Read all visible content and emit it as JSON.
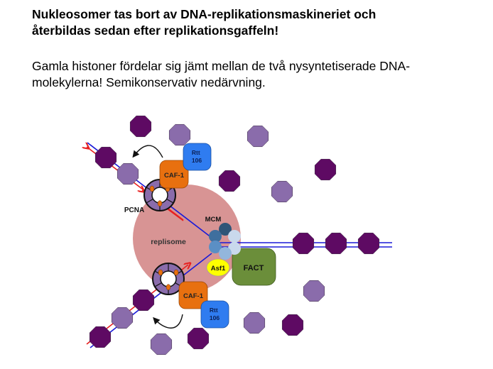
{
  "slide": {
    "title_lines": [
      "Nukleosomer tas bort av DNA-replikationsmaskineriet och",
      "återbildas sedan efter replikationsgaffeln!"
    ],
    "body_lines": [
      "Gamla histoner fördelar sig jämt mellan de två nysyntetiserade DNA-",
      "molekylerna! Semikonservativ nedärvning."
    ]
  },
  "diagram": {
    "labels": {
      "replisome": "replisome",
      "pcna": "PCNA",
      "mcm": "MCM",
      "caf1": "CAF-1",
      "rtt106_line1": "Rtt",
      "rtt106_line2": "106",
      "asf1": "Asf1",
      "fact": "FACT"
    },
    "colors": {
      "old_histone": "#5e0a63",
      "new_histone": "#8a6cab",
      "replisome": "#d89494",
      "caf1": "#e8700f",
      "rtt106": "#2f7cf0",
      "asf1": "#ffff00",
      "fact": "#6b8e3a",
      "dna_parental": "#1a1ad8",
      "dna_new": "#e82020",
      "pcna": "#8a6cab",
      "mcm_dark": "#2f5577",
      "mcm_mid": "#5b8fc4",
      "mcm_light": "#c9d9ec"
    }
  }
}
